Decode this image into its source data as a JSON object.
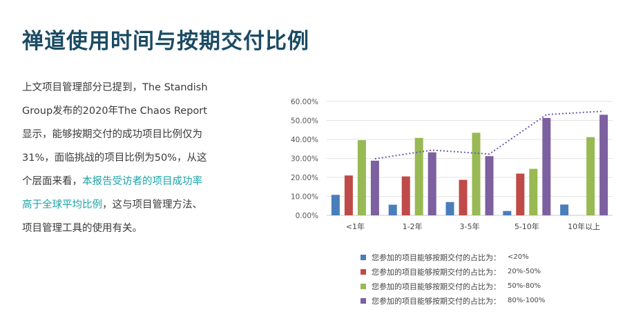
{
  "title": "禅道使用时间与按期交付比例",
  "paragraph": {
    "part1": "上文项目管理部分已提到，The Standish Group发布的2020年The Chaos Report显示，能够按期交付的成功项目比例仅为31%，面临挑战的项目比例为50%，从这个层面来看，",
    "highlight": "本报告受访者的项目成功率高于全球平均比例",
    "part2": "，这与项目管理方法、项目管理工具的使用有关。"
  },
  "colors": {
    "title": "#1b4b63",
    "highlight": "#1ba3a6"
  },
  "chart_data": {
    "type": "bar",
    "categories": [
      "<1年",
      "1-2年",
      "3-5年",
      "5-10年",
      "10年以上"
    ],
    "ylim": [
      0,
      60
    ],
    "yticks": [
      "0.00%",
      "10.00%",
      "20.00%",
      "30.00%",
      "40.00%",
      "50.00%",
      "60.00%"
    ],
    "grid": true,
    "legend_position": "bottom",
    "series": [
      {
        "name": "您参加的项目能够按期交付的占比为：",
        "range": "<20%",
        "color": "#4a7ebb",
        "values": [
          10.8,
          5.6,
          7.0,
          2.3,
          5.7
        ]
      },
      {
        "name": "您参加的项目能够按期交付的占比为：",
        "range": "20%-50%",
        "color": "#be4b48",
        "values": [
          21.0,
          20.5,
          18.7,
          22.0,
          0
        ]
      },
      {
        "name": "您参加的项目能够按期交付的占比为：",
        "range": "50%-80%",
        "color": "#98b954",
        "values": [
          39.6,
          40.8,
          43.5,
          24.5,
          41.2
        ]
      },
      {
        "name": "您参加的项目能够按期交付的占比为：",
        "range": "80%-100%",
        "color": "#7d60a0",
        "values": [
          28.8,
          33.2,
          31.2,
          51.3,
          53.0
        ]
      }
    ],
    "trendline": {
      "series_index": 3,
      "style": "dotted",
      "color": "#6e58b0"
    }
  }
}
